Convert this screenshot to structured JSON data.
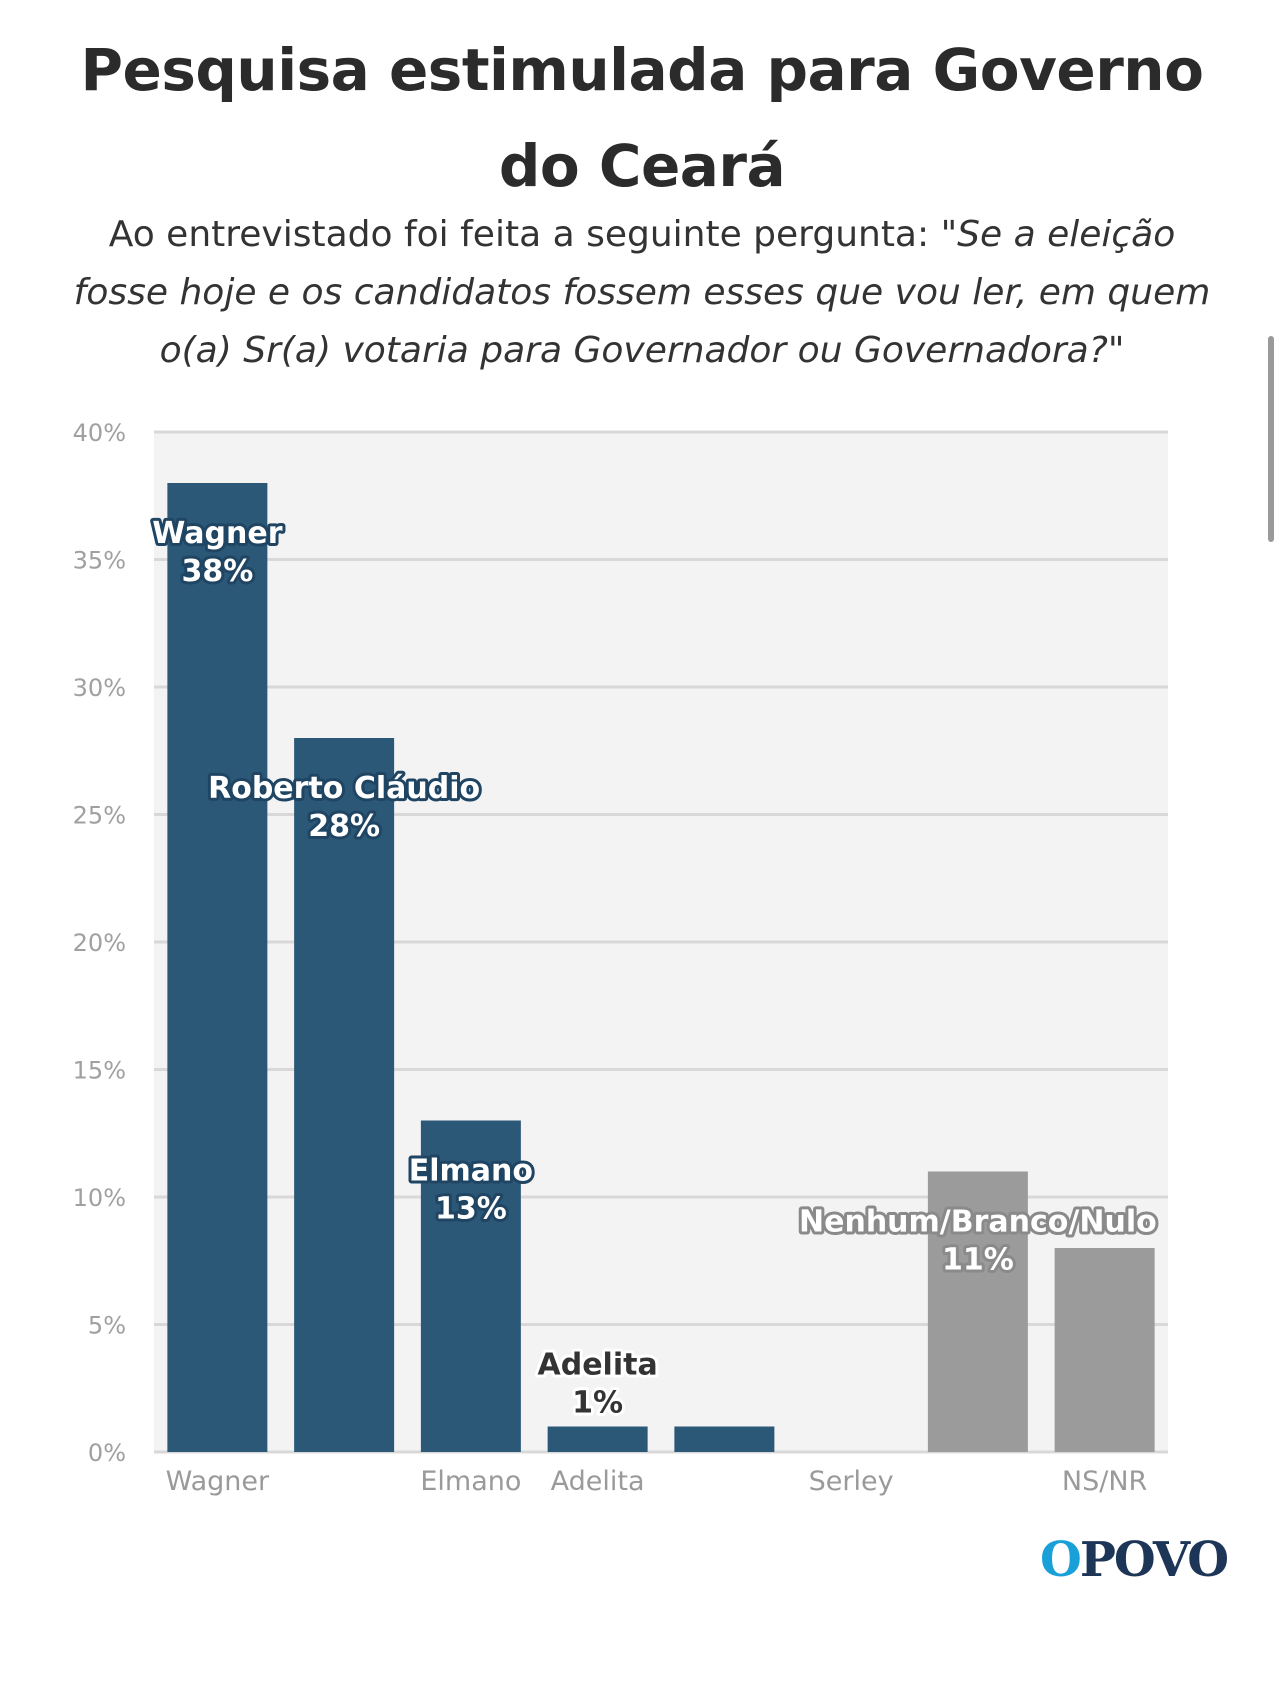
{
  "title": "Pesquisa estimulada para Governo do Ceará",
  "subtitle_prefix": "Ao entrevistado foi feita a seguinte pergunta: ",
  "subtitle_quote": "\"Se a eleição fosse hoje e os candidatos fossem esses que vou ler, em quem o(a) Sr(a) votaria para Governador ou Governadora?\"",
  "logo": {
    "first": "O",
    "rest": "POVO"
  },
  "colors": {
    "candidate": "#2c5878",
    "other": "#9b9b9b",
    "plot_bg": "#f3f3f3",
    "grid": "#d8d8d8"
  },
  "chart_data": {
    "type": "bar",
    "ylim": [
      0,
      40
    ],
    "yticks": [
      0,
      5,
      10,
      15,
      20,
      25,
      30,
      35,
      40
    ],
    "ytick_labels": [
      "0%",
      "5%",
      "10%",
      "15%",
      "20%",
      "25%",
      "30%",
      "35%",
      "40%"
    ],
    "grid": true,
    "bars": [
      {
        "category": "Wagner",
        "value": 38,
        "group": "candidate",
        "axis_label": "Wagner",
        "label_name": "Wagner",
        "label_value": "38%"
      },
      {
        "category": "Roberto Cláudio",
        "value": 28,
        "group": "candidate",
        "axis_label": "",
        "label_name": "Roberto Cláudio",
        "label_value": "28%"
      },
      {
        "category": "Elmano",
        "value": 13,
        "group": "candidate",
        "axis_label": "Elmano",
        "label_name": "Elmano",
        "label_value": "13%"
      },
      {
        "category": "Adelita",
        "value": 1,
        "group": "candidate",
        "axis_label": "Adelita",
        "label_name": "Adelita",
        "label_value": "1%"
      },
      {
        "category": "",
        "value": 1,
        "group": "candidate",
        "axis_label": "",
        "label_name": "",
        "label_value": ""
      },
      {
        "category": "Serley",
        "value": 0,
        "group": "candidate",
        "axis_label": "Serley",
        "label_name": "",
        "label_value": ""
      },
      {
        "category": "Nenhum/Branco/Nulo",
        "value": 11,
        "group": "other",
        "axis_label": "",
        "label_name": "Nenhum/Branco/Nulo",
        "label_value": "11%"
      },
      {
        "category": "NS/NR",
        "value": 8,
        "group": "other",
        "axis_label": "NS/NR",
        "label_name": "",
        "label_value": ""
      }
    ]
  }
}
